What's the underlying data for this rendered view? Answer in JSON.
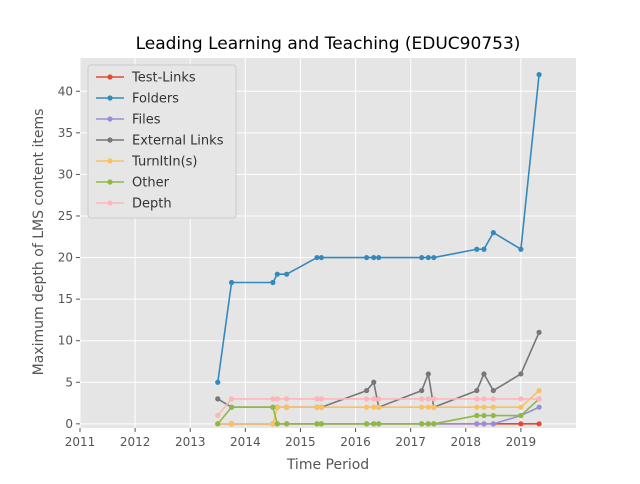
{
  "chart_data": {
    "type": "line",
    "title": "Leading Learning and Teaching (EDUC90753)",
    "xlabel": "Time Period",
    "ylabel": "Maximum depth of LMS content items",
    "xlim": [
      2011.0,
      2020.0
    ],
    "ylim": [
      -0.5,
      44.0
    ],
    "x_ticks": [
      2011,
      2012,
      2013,
      2014,
      2015,
      2016,
      2017,
      2018,
      2019
    ],
    "y_ticks": [
      0,
      5,
      10,
      15,
      20,
      25,
      30,
      35,
      40
    ],
    "grid": true,
    "legend_position": "top-left",
    "style": {
      "plot_background": "#e5e5e5",
      "grid_color": "#ffffff",
      "text_color": "#555555"
    },
    "series": [
      {
        "name": "Test-Links",
        "color": "#e24a33",
        "x": [
          2013.5,
          2013.75,
          2014.5,
          2014.58,
          2014.75,
          2015.3,
          2015.38,
          2016.2,
          2016.33,
          2016.42,
          2017.2,
          2017.32,
          2017.42,
          2018.2,
          2018.33,
          2018.5,
          2019.0,
          2019.33
        ],
        "y": [
          0,
          0,
          0,
          0,
          0,
          0,
          0,
          0,
          0,
          0,
          0,
          0,
          0,
          0,
          0,
          0,
          0,
          0
        ]
      },
      {
        "name": "Folders",
        "color": "#348abd",
        "x": [
          2013.5,
          2013.75,
          2014.5,
          2014.58,
          2014.75,
          2015.3,
          2015.38,
          2016.2,
          2016.33,
          2016.42,
          2017.2,
          2017.32,
          2017.42,
          2018.2,
          2018.33,
          2018.5,
          2019.0,
          2019.33
        ],
        "y": [
          5,
          17,
          17,
          18,
          18,
          20,
          20,
          20,
          20,
          20,
          20,
          20,
          20,
          21,
          21,
          23,
          21,
          42
        ]
      },
      {
        "name": "Files",
        "color": "#988ed5",
        "x": [
          2013.5,
          2013.75,
          2014.5,
          2014.58,
          2014.75,
          2015.3,
          2015.38,
          2016.2,
          2016.33,
          2016.42,
          2017.2,
          2017.32,
          2017.42,
          2018.2,
          2018.33,
          2018.5,
          2019.0,
          2019.33
        ],
        "y": [
          0,
          0,
          0,
          0,
          0,
          0,
          0,
          0,
          0,
          0,
          0,
          0,
          0,
          0,
          0,
          0,
          1,
          2
        ]
      },
      {
        "name": "External Links",
        "color": "#777777",
        "x": [
          2013.5,
          2013.75,
          2014.5,
          2014.58,
          2014.75,
          2015.3,
          2015.38,
          2016.2,
          2016.33,
          2016.42,
          2017.2,
          2017.32,
          2017.42,
          2018.2,
          2018.33,
          2018.5,
          2019.0,
          2019.33
        ],
        "y": [
          3,
          2,
          2,
          2,
          2,
          2,
          2,
          4,
          5,
          2,
          4,
          6,
          2,
          4,
          6,
          4,
          6,
          11
        ]
      },
      {
        "name": "TurnItIn(s)",
        "color": "#fbc15e",
        "x": [
          2013.5,
          2013.75,
          2014.5,
          2014.58,
          2014.75,
          2015.3,
          2015.38,
          2016.2,
          2016.33,
          2016.42,
          2017.2,
          2017.32,
          2017.42,
          2018.2,
          2018.33,
          2018.5,
          2019.0,
          2019.33
        ],
        "y": [
          0,
          0,
          0,
          2,
          2,
          2,
          2,
          2,
          2,
          2,
          2,
          2,
          2,
          2,
          2,
          2,
          2,
          4
        ]
      },
      {
        "name": "Other",
        "color": "#8eba42",
        "x": [
          2013.5,
          2013.75,
          2014.5,
          2014.58,
          2014.75,
          2015.3,
          2015.38,
          2016.2,
          2016.33,
          2016.42,
          2017.2,
          2017.32,
          2017.42,
          2018.2,
          2018.33,
          2018.5,
          2019.0,
          2019.33
        ],
        "y": [
          0,
          2,
          2,
          0,
          0,
          0,
          0,
          0,
          0,
          0,
          0,
          0,
          0,
          1,
          1,
          1,
          1,
          3
        ]
      },
      {
        "name": "Depth",
        "color": "#ffb5b8",
        "x": [
          2013.5,
          2013.75,
          2014.5,
          2014.58,
          2014.75,
          2015.3,
          2015.38,
          2016.2,
          2016.33,
          2016.42,
          2017.2,
          2017.32,
          2017.42,
          2018.2,
          2018.33,
          2018.5,
          2019.0,
          2019.33
        ],
        "y": [
          1,
          3,
          3,
          3,
          3,
          3,
          3,
          3,
          3,
          3,
          3,
          3,
          3,
          3,
          3,
          3,
          3,
          3
        ]
      }
    ]
  }
}
